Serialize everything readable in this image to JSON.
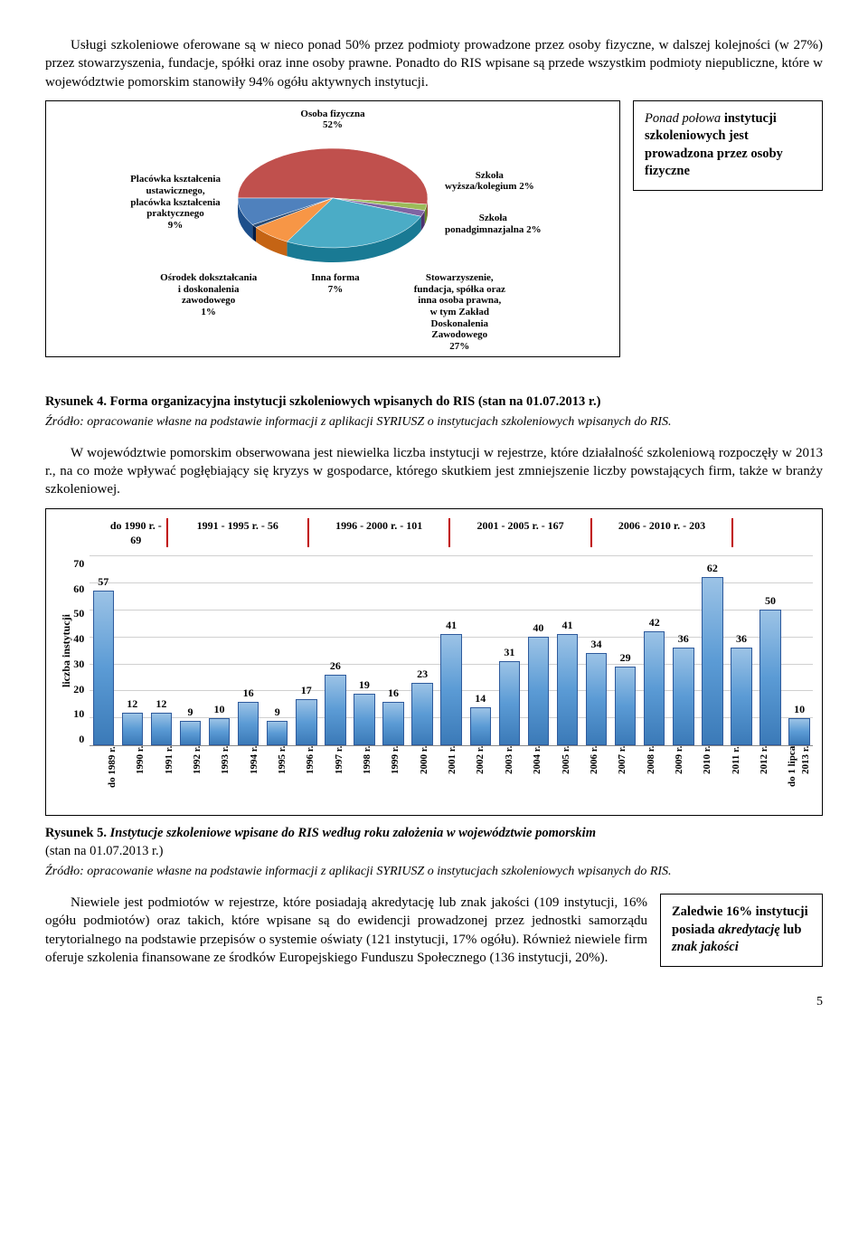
{
  "para1": "Usługi szkoleniowe oferowane są w nieco ponad 50% przez podmioty prowadzone przez osoby fizyczne, w dalszej kolejności (w 27%) przez stowarzyszenia, fundacje, spółki oraz inne osoby prawne. Ponadto do RIS wpisane są przede wszystkim podmioty niepubliczne, które w województwie pomorskim stanowiły 94% ogółu aktywnych instytucji.",
  "callout1": {
    "line1": "Ponad połowa",
    "line2": "instytucji szkoleniowych jest prowadzona przez",
    "line3": "osoby fizyczne"
  },
  "pie": {
    "labels": {
      "top": "Osoba fizyczna\n52%",
      "right1": "Szkoła\nwyższa/kolegium 2%",
      "right2": "Szkoła\nponadgimnazjalna 2%",
      "left": "Placówka kształcenia\nustawicznego,\nplacówka kształcenia\npraktycznego\n9%",
      "bottom1": "Ośrodek dokształcania\ni doskonalenia\nzawodowego\n1%",
      "bottom2": "Inna forma\n7%",
      "bottom3": "Stowarzyszenie,\nfundacja, spółka oraz\ninna osoba prawna,\nw tym Zakład\nDoskonalenia\nZawodowego\n27%"
    },
    "colors": {
      "osoba": "#c0504d",
      "wyzsza": "#9bbb59",
      "ponadgim": "#8064a2",
      "stow": "#4bacc6",
      "inna": "#f79646",
      "osrodek": "#2c4d75",
      "placowka": "#4f81bd"
    }
  },
  "fig4": {
    "num": "Rysunek 4. ",
    "title": "Forma organizacyjna instytucji szkoleniowych wpisanych do RIS (stan na 01.07.2013 r.)"
  },
  "source": "Źródło: opracowanie własne na podstawie informacji z aplikacji SYRIUSZ o instytucjach szkoleniowych wpisanych do RIS.",
  "para2": "W województwie pomorskim obserwowana jest niewielka liczba instytucji w rejestrze, które działalność szkoleniową rozpoczęły w 2013 r., na co może wpływać pogłębiający się kryzys w gospodarce, którego skutkiem jest zmniejszenie liczby powstających firm, także w branży szkoleniowej.",
  "barChart": {
    "yLabel": "liczba instytucji",
    "yMax": 70,
    "yStep": 10,
    "periods": [
      {
        "label": "do 1990 r. - 69",
        "span": 2
      },
      {
        "label": "1991 - 1995 r. - 56",
        "span": 5
      },
      {
        "label": "1996 - 2000 r. - 101",
        "span": 5
      },
      {
        "label": "2001 - 2005 r. - 167",
        "span": 5
      },
      {
        "label": "2006 - 2010 r. - 203",
        "span": 5
      }
    ],
    "bars": [
      {
        "x": "do 1989 r.",
        "v": 57
      },
      {
        "x": "1990 r.",
        "v": 12
      },
      {
        "x": "1991 r.",
        "v": 12
      },
      {
        "x": "1992 r.",
        "v": 9
      },
      {
        "x": "1993 r.",
        "v": 10
      },
      {
        "x": "1994 r.",
        "v": 16
      },
      {
        "x": "1995 r.",
        "v": 9
      },
      {
        "x": "1996 r.",
        "v": 17
      },
      {
        "x": "1997 r.",
        "v": 26
      },
      {
        "x": "1998 r.",
        "v": 19
      },
      {
        "x": "1999 r.",
        "v": 16
      },
      {
        "x": "2000 r.",
        "v": 23
      },
      {
        "x": "2001 r.",
        "v": 41
      },
      {
        "x": "2002 r.",
        "v": 14
      },
      {
        "x": "2003 r.",
        "v": 31
      },
      {
        "x": "2004 r.",
        "v": 40
      },
      {
        "x": "2005 r.",
        "v": 41
      },
      {
        "x": "2006 r.",
        "v": 34
      },
      {
        "x": "2007 r.",
        "v": 29
      },
      {
        "x": "2008 r.",
        "v": 42
      },
      {
        "x": "2009 r.",
        "v": 36
      },
      {
        "x": "2010 r.",
        "v": 62
      },
      {
        "x": "2011 r.",
        "v": 36
      },
      {
        "x": "2012 r.",
        "v": 50
      },
      {
        "x": "do 1 lipca 2013 r.",
        "v": 10
      }
    ]
  },
  "fig5": {
    "num": "Rysunek 5. ",
    "title": "Instytucje szkoleniowe wpisane do RIS według roku założenia w województwie pomorskim ",
    "suffix": "(stan na 01.07.2013 r.)"
  },
  "para3": "Niewiele jest podmiotów w rejestrze, które posiadają akredytację lub znak jakości (109 instytucji, 16% ogółu podmiotów) oraz takich, które wpisane są do ewidencji prowadzonej przez jednostki samorządu terytorialnego na podstawie przepisów o systemie oświaty (121 instytucji, 17% ogółu). Również niewiele firm oferuje szkolenia finansowane ze środków Europejskiego Funduszu Społecznego (136 instytucji, 20%).",
  "callout2": {
    "line1": "Zaledwie 16% instytucji posiada",
    "line2": "akredytację",
    "line3": "lub",
    "line4": "znak jakości"
  },
  "pageNum": "5"
}
